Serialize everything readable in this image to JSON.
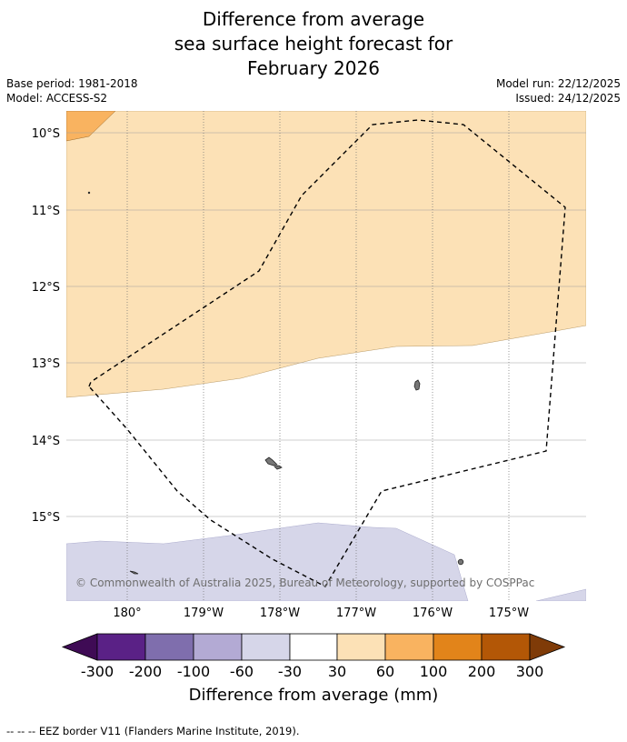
{
  "title": {
    "line1": "Difference from average",
    "line2": "sea surface height forecast for",
    "line3": "February 2026"
  },
  "meta": {
    "base_period": "Base period: 1981-2018",
    "model": "Model: ACCESS-S2",
    "model_run": "Model run: 22/12/2025",
    "issued": "Issued: 24/12/2025"
  },
  "map": {
    "lat_labels": [
      "10°S",
      "11°S",
      "12°S",
      "13°S",
      "14°S",
      "15°S"
    ],
    "lon_labels": [
      "180°",
      "179°W",
      "178°W",
      "177°W",
      "176°W",
      "175°W"
    ],
    "attribution": "© Commonwealth of Australia 2025, Bureau of Meteorology, supported by COSPPac",
    "colors": {
      "orange_100": "#f9b360",
      "orange_60": "#fce1b6",
      "neutral": "#ffffff",
      "purple_60": "#d6d6e9"
    }
  },
  "legend": {
    "ticks": [
      "-300",
      "-200",
      "-100",
      "-60",
      "-30",
      "30",
      "60",
      "100",
      "200",
      "300"
    ],
    "title": "Difference from average (mm)",
    "colors": [
      "#3f0b55",
      "#5a2186",
      "#7f6ead",
      "#b3aad4",
      "#d6d6e9",
      "#ffffff",
      "#fce1b6",
      "#f9b360",
      "#e2841a",
      "#b35706",
      "#7f3b08"
    ]
  },
  "footer": "--  --  -- EEZ border V11 (Flanders Marine Institute, 2019)."
}
